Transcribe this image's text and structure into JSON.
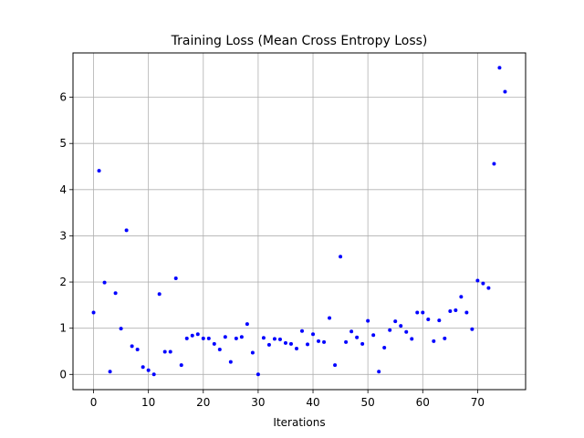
{
  "chart_data": {
    "type": "scatter",
    "title": "Training Loss (Mean Cross Entropy Loss)",
    "xlabel": "Iterations",
    "ylabel": "",
    "xlim": [
      -3.75,
      78.75
    ],
    "ylim": [
      -0.33,
      6.96
    ],
    "xticks": [
      0,
      10,
      20,
      30,
      40,
      50,
      60,
      70
    ],
    "yticks": [
      0,
      1,
      2,
      3,
      4,
      5,
      6
    ],
    "grid": true,
    "series": [
      {
        "color": "#0000ff",
        "x": [
          0,
          1,
          2,
          3,
          4,
          5,
          6,
          7,
          8,
          9,
          10,
          11,
          12,
          13,
          14,
          15,
          16,
          17,
          18,
          19,
          20,
          21,
          22,
          23,
          24,
          25,
          26,
          27,
          28,
          29,
          30,
          31,
          32,
          33,
          34,
          35,
          36,
          37,
          38,
          39,
          40,
          41,
          42,
          43,
          44,
          45,
          46,
          47,
          48,
          49,
          50,
          51,
          52,
          53,
          54,
          55,
          56,
          57,
          58,
          59,
          60,
          61,
          62,
          63,
          64,
          65,
          66,
          67,
          68,
          69,
          70,
          71,
          72,
          73,
          74,
          75
        ],
        "y": [
          1.34,
          4.41,
          1.99,
          0.06,
          1.76,
          0.99,
          3.12,
          0.61,
          0.54,
          0.16,
          0.09,
          0.0,
          1.74,
          0.49,
          0.49,
          2.08,
          0.2,
          0.78,
          0.84,
          0.87,
          0.78,
          0.78,
          0.66,
          0.54,
          0.81,
          0.27,
          0.78,
          0.81,
          1.09,
          0.47,
          0.0,
          0.79,
          0.64,
          0.77,
          0.76,
          0.68,
          0.66,
          0.56,
          0.94,
          0.65,
          0.87,
          0.72,
          0.7,
          1.22,
          0.2,
          2.55,
          0.7,
          0.93,
          0.8,
          0.66,
          1.16,
          0.85,
          0.06,
          0.58,
          0.96,
          1.15,
          1.05,
          0.92,
          0.77,
          1.34,
          1.34,
          1.19,
          0.72,
          1.17,
          0.78,
          1.37,
          1.39,
          1.68,
          1.34,
          0.98,
          2.03,
          1.97,
          1.87,
          4.56,
          6.64,
          6.12
        ]
      }
    ]
  }
}
